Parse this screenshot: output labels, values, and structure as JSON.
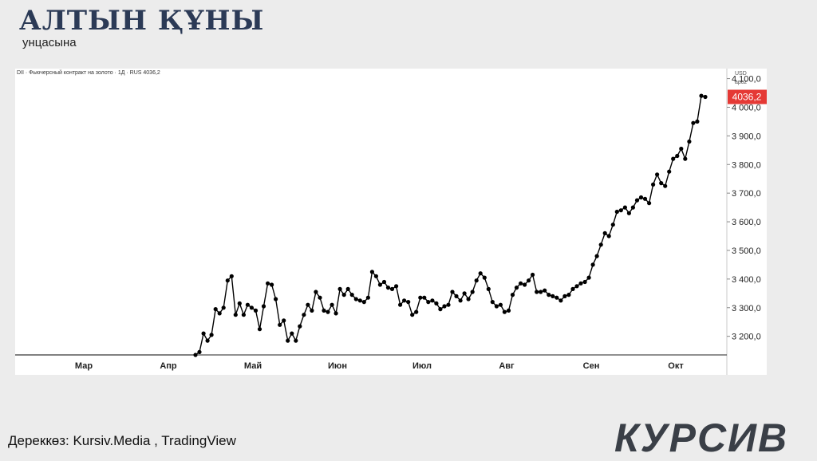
{
  "header": {
    "title": "АЛТЫН ҚҰНЫ",
    "subtitle": "унцасына"
  },
  "footer": {
    "source": "Дереккөз: Kursiv.Media , TradingView",
    "logo": "КУРСИВ"
  },
  "chart_data": {
    "type": "line",
    "title": "DII · Фьючерсный контракт на золото · 1Д · RUS  4036,2",
    "currency": "USD",
    "currency_sub": "apoz",
    "last_value_label": "4036,2",
    "last_value": 4036.2,
    "ylim": [
      3135,
      4135
    ],
    "y_ticks": [
      3200,
      3300,
      3400,
      3500,
      3600,
      3700,
      3800,
      3900,
      4000,
      4100
    ],
    "y_tick_labels": [
      "3 200,0",
      "3 300,0",
      "3 400,0",
      "3 500,0",
      "3 600,0",
      "3 700,0",
      "3 800,0",
      "3 900,0",
      "4 000,0",
      "4 100,0"
    ],
    "x_labels": [
      "Мар",
      "Апр",
      "Май",
      "Июн",
      "Июл",
      "Авг",
      "Сен",
      "Окт"
    ],
    "colors": {
      "line": "#000000",
      "last_badge": "#e53935"
    },
    "series": [
      {
        "values": [
          3135,
          3145,
          3210,
          3185,
          3205,
          3295,
          3280,
          3300,
          3395,
          3410,
          3275,
          3315,
          3275,
          3310,
          3300,
          3290,
          3225,
          3305,
          3385,
          3380,
          3330,
          3240,
          3255,
          3185,
          3210,
          3185,
          3235,
          3275,
          3310,
          3290,
          3355,
          3335,
          3290,
          3285,
          3310,
          3280,
          3365,
          3345,
          3365,
          3345,
          3330,
          3325,
          3320,
          3335,
          3425,
          3410,
          3380,
          3390,
          3370,
          3365,
          3375,
          3310,
          3325,
          3320,
          3275,
          3285,
          3335,
          3335,
          3320,
          3325,
          3315,
          3295,
          3305,
          3310,
          3355,
          3340,
          3325,
          3350,
          3330,
          3355,
          3395,
          3420,
          3405,
          3365,
          3320,
          3305,
          3310,
          3285,
          3290,
          3345,
          3370,
          3385,
          3380,
          3395,
          3415,
          3355,
          3355,
          3360,
          3345,
          3340,
          3335,
          3325,
          3340,
          3345,
          3365,
          3375,
          3385,
          3390,
          3405,
          3450,
          3480,
          3520,
          3560,
          3550,
          3590,
          3635,
          3640,
          3650,
          3630,
          3650,
          3675,
          3685,
          3680,
          3665,
          3730,
          3765,
          3735,
          3725,
          3775,
          3820,
          3830,
          3855,
          3820,
          3880,
          3945,
          3950,
          4040,
          4036.2
        ]
      }
    ]
  }
}
